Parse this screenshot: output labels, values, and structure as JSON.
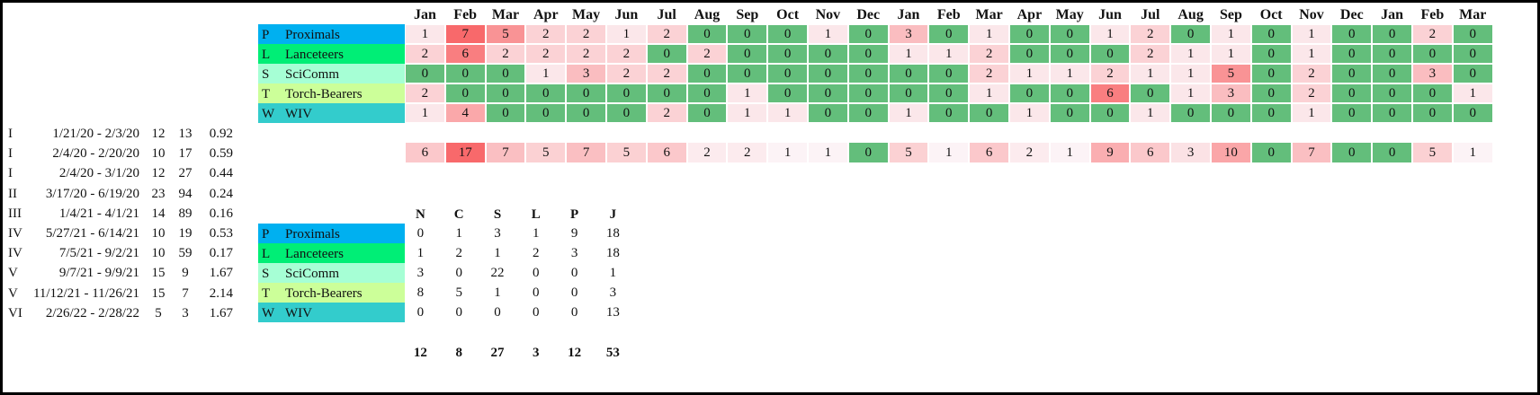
{
  "months": [
    "Jan",
    "Feb",
    "Mar",
    "Apr",
    "May",
    "Jun",
    "Jul",
    "Aug",
    "Sep",
    "Oct",
    "Nov",
    "Dec",
    "Jan",
    "Feb",
    "Mar",
    "Apr",
    "May",
    "Jun",
    "Jul",
    "Aug",
    "Sep",
    "Oct",
    "Nov",
    "Dec",
    "Jan",
    "Feb",
    "Mar"
  ],
  "groups": [
    {
      "code": "P",
      "name": "Proximals",
      "color": "#00b0f0"
    },
    {
      "code": "L",
      "name": "Lanceteers",
      "color": "#00ee76"
    },
    {
      "code": "S",
      "name": "SciComm",
      "color": "#a6ffd5"
    },
    {
      "code": "T",
      "name": "Torch-Bearers",
      "color": "#ccff99"
    },
    {
      "code": "W",
      "name": "WIV",
      "color": "#33cccc"
    }
  ],
  "monthly_counts": [
    [
      "1",
      "7",
      "5",
      "2",
      "2",
      "1",
      "2",
      "0",
      "0",
      "0",
      "1",
      "0",
      "3",
      "0",
      "1",
      "0",
      "0",
      "1",
      "2",
      "0",
      "1",
      "0",
      "1",
      "0",
      "0",
      "2",
      "0"
    ],
    [
      "2",
      "6",
      "2",
      "2",
      "2",
      "2",
      "0",
      "2",
      "0",
      "0",
      "0",
      "0",
      "1",
      "1",
      "2",
      "0",
      "0",
      "0",
      "2",
      "1",
      "1",
      "0",
      "1",
      "0",
      "0",
      "0",
      "0"
    ],
    [
      "0",
      "0",
      "0",
      "1",
      "3",
      "2",
      "2",
      "0",
      "0",
      "0",
      "0",
      "0",
      "0",
      "0",
      "2",
      "1",
      "1",
      "2",
      "1",
      "1",
      "5",
      "0",
      "2",
      "0",
      "0",
      "3",
      "0"
    ],
    [
      "2",
      "0",
      "0",
      "0",
      "0",
      "0",
      "0",
      "0",
      "1",
      "0",
      "0",
      "0",
      "0",
      "0",
      "1",
      "0",
      "0",
      "6",
      "0",
      "1",
      "3",
      "0",
      "2",
      "0",
      "0",
      "0",
      "1"
    ],
    [
      "1",
      "4",
      "0",
      "0",
      "0",
      "0",
      "2",
      "0",
      "1",
      "1",
      "0",
      "0",
      "1",
      "0",
      "0",
      "1",
      "0",
      "0",
      "1",
      "0",
      "0",
      "0",
      "1",
      "0",
      "0",
      "0",
      "0"
    ]
  ],
  "monthly_totals": [
    "6",
    "17",
    "7",
    "5",
    "7",
    "5",
    "6",
    "2",
    "2",
    "1",
    "1",
    "0",
    "5",
    "1",
    "6",
    "2",
    "1",
    "9",
    "6",
    "3",
    "10",
    "0",
    "7",
    "0",
    "0",
    "5",
    "1"
  ],
  "periods": [
    {
      "phase": "I",
      "dates": "1/21/20 - 2/3/20",
      "a": "12",
      "b": "13",
      "ratio": "0.92"
    },
    {
      "phase": "I",
      "dates": "2/4/20 - 2/20/20",
      "a": "10",
      "b": "17",
      "ratio": "0.59"
    },
    {
      "phase": "I",
      "dates": "2/4/20 - 3/1/20",
      "a": "12",
      "b": "27",
      "ratio": "0.44"
    },
    {
      "phase": "II",
      "dates": "3/17/20 - 6/19/20",
      "a": "23",
      "b": "94",
      "ratio": "0.24"
    },
    {
      "phase": "III",
      "dates": "1/4/21 - 4/1/21",
      "a": "14",
      "b": "89",
      "ratio": "0.16"
    },
    {
      "phase": "IV",
      "dates": "5/27/21 - 6/14/21",
      "a": "10",
      "b": "19",
      "ratio": "0.53"
    },
    {
      "phase": "IV",
      "dates": "7/5/21 - 9/2/21",
      "a": "10",
      "b": "59",
      "ratio": "0.17"
    },
    {
      "phase": "V",
      "dates": "9/7/21 - 9/9/21",
      "a": "15",
      "b": "9",
      "ratio": "1.67"
    },
    {
      "phase": "V",
      "dates": "11/12/21 - 11/26/21",
      "a": "15",
      "b": "7",
      "ratio": "2.14"
    },
    {
      "phase": "VI",
      "dates": "2/26/22 - 2/28/22",
      "a": "5",
      "b": "3",
      "ratio": "1.67"
    }
  ],
  "summary_columns": [
    "N",
    "C",
    "S",
    "L",
    "P",
    "J"
  ],
  "summary_rows": [
    [
      "0",
      "1",
      "3",
      "1",
      "9",
      "18"
    ],
    [
      "1",
      "2",
      "1",
      "2",
      "3",
      "18"
    ],
    [
      "3",
      "0",
      "22",
      "0",
      "0",
      "1"
    ],
    [
      "8",
      "5",
      "1",
      "0",
      "0",
      "3"
    ],
    [
      "0",
      "0",
      "0",
      "0",
      "0",
      "13"
    ]
  ],
  "summary_totals": [
    "12",
    "8",
    "27",
    "3",
    "12",
    "53"
  ],
  "heat_colors": {
    "green": "#63be7b",
    "white": "#fcfcff",
    "red": "#f8696b"
  }
}
